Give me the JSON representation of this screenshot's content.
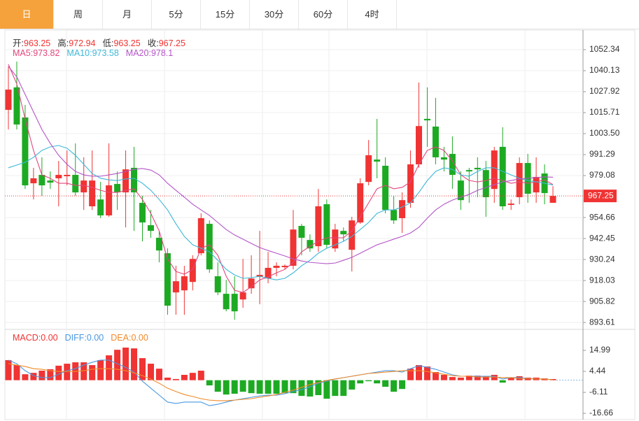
{
  "tabs": [
    "日",
    "周",
    "月",
    "5分",
    "15分",
    "30分",
    "60分",
    "4时"
  ],
  "active_tab": 0,
  "chart_data": {
    "type": "candlestick",
    "header_labels": [
      "开",
      "高",
      "低",
      "收"
    ],
    "up_color": "#f03333",
    "down_color": "#1daa23",
    "open": [
      1017.3,
      1030.4,
      1012.9,
      974.6,
      979.5,
      976.2,
      977.5,
      978.7,
      979.5,
      969.3,
      961.2,
      965.2,
      955.9,
      974.2,
      969.3,
      983.6,
      963.2,
      950.2,
      942.9,
      933.9,
      911.1,
      912.3,
      917.2,
      933.9,
      951.0,
      920.5,
      910.3,
      910.3,
      907.0,
      913.5,
      920.1,
      919.2,
      925.4,
      925.8,
      926.6,
      949.8,
      941.6,
      938.0,
      962.4,
      936.7,
      946.9,
      935.9,
      951.8,
      975.4,
      988.4,
      984.8,
      959.1,
      954.3,
      963.2,
      985.6,
      1012.1,
      1007.6,
      989.7,
      991.7,
      976.2,
      982.3,
      983.6,
      982.3,
      971.3,
      995.8,
      962.0,
      966.5,
      986.4,
      969.3,
      980.3,
      963.25
    ],
    "high": [
      1042.6,
      1045.4,
      1020.2,
      983.6,
      989.7,
      981.5,
      987.6,
      993.7,
      997.8,
      989.7,
      993.7,
      975.4,
      997.8,
      981.5,
      993.7,
      995.8,
      967.3,
      959.1,
      946.9,
      936.7,
      926.6,
      926.6,
      932.7,
      957.1,
      953.0,
      928.6,
      918.4,
      920.5,
      930.6,
      932.7,
      946.9,
      934.7,
      928.6,
      927.4,
      959.1,
      951.0,
      944.9,
      971.3,
      965.2,
      951.0,
      948.9,
      955.1,
      977.5,
      999.8,
      1012.1,
      989.7,
      967.3,
      969.3,
      993.7,
      1033.2,
      1030.4,
      1024.3,
      995.8,
      1001.9,
      981.5,
      983.6,
      989.7,
      987.6,
      995.8,
      1007.2,
      965.2,
      989.7,
      991.7,
      989.7,
      985.6,
      972.94
    ],
    "low": [
      1005.9,
      1005.9,
      971.3,
      965.2,
      967.3,
      971.3,
      961.2,
      973.4,
      967.3,
      959.1,
      959.1,
      954.3,
      955.1,
      959.1,
      948.9,
      946.9,
      940.8,
      942.9,
      928.6,
      898.1,
      898.1,
      898.1,
      912.3,
      932.7,
      922.5,
      909.5,
      900.1,
      895.2,
      902.2,
      910.3,
      904.2,
      916.4,
      920.5,
      924.5,
      924.5,
      932.7,
      934.7,
      934.7,
      936.7,
      934.7,
      940.8,
      923.3,
      951.0,
      973.4,
      977.5,
      957.1,
      951.0,
      945.7,
      960.4,
      983.6,
      995.8,
      985.6,
      981.5,
      971.3,
      959.1,
      963.2,
      966.5,
      955.1,
      963.2,
      959.1,
      959.1,
      962.4,
      963.2,
      963.2,
      962.4,
      963.25
    ],
    "close": [
      1029.1,
      1008.8,
      973.4,
      977.5,
      973.4,
      975.0,
      979.5,
      979.5,
      969.3,
      976.2,
      976.2,
      955.9,
      973.4,
      969.3,
      982.7,
      969.3,
      951.8,
      946.9,
      935.5,
      903.4,
      917.6,
      920.5,
      930.6,
      954.3,
      924.5,
      911.1,
      901.3,
      900.1,
      911.1,
      919.2,
      921.3,
      925.4,
      926.6,
      926.6,
      947.7,
      942.9,
      936.7,
      961.2,
      938.8,
      947.7,
      944.9,
      953.0,
      974.6,
      990.9,
      987.2,
      959.1,
      953.0,
      964.8,
      985.6,
      1007.9,
      1011.2,
      989.7,
      988.4,
      979.5,
      964.8,
      981.5,
      982.7,
      966.5,
      993.7,
      961.2,
      962.8,
      986.4,
      968.5,
      978.3,
      968.9,
      967.25
    ],
    "series": [
      {
        "name": "MA5",
        "color": "#e2467e",
        "values": [
          1043.8,
          1032.4,
          1012.0,
          993.7,
          979.5,
          977.5,
          974.6,
          974.6,
          973.4,
          973.4,
          972.2,
          970.5,
          969.3,
          969.3,
          970.5,
          971.4,
          965.2,
          957.1,
          946.9,
          930.6,
          923.3,
          921.7,
          924.5,
          936.8,
          938.8,
          932.7,
          920.5,
          912.3,
          911.1,
          914.4,
          918.4,
          920.1,
          922.5,
          924.5,
          928.6,
          934.7,
          938.0,
          940.8,
          942.9,
          942.9,
          942.9,
          946.9,
          955.1,
          963.2,
          971.4,
          973.4,
          971.4,
          972.2,
          975.4,
          985.6,
          993.7,
          995.8,
          993.7,
          987.6,
          979.5,
          976.2,
          975.4,
          976.2,
          977.5,
          976.2,
          974.6,
          975.4,
          974.6,
          975.4,
          976.6,
          973.82
        ]
      },
      {
        "name": "MA10",
        "color": "#3db8d8",
        "values": [
          983.6,
          985.2,
          986.8,
          989.7,
          993.7,
          995.8,
          996.6,
          995.0,
          990.9,
          985.6,
          980.3,
          977.5,
          976.6,
          976.2,
          977.1,
          977.5,
          974.6,
          970.5,
          965.2,
          959.1,
          951.0,
          943.7,
          938.8,
          936.8,
          934.7,
          929.8,
          924.5,
          921.3,
          919.3,
          919.7,
          920.5,
          919.3,
          918.4,
          919.3,
          922.5,
          926.6,
          929.8,
          933.9,
          936.8,
          938.8,
          940.8,
          943.7,
          947.7,
          951.8,
          957.1,
          959.1,
          959.1,
          960.8,
          963.2,
          969.3,
          976.2,
          981.5,
          983.6,
          982.7,
          979.5,
          978.7,
          981.5,
          983.6,
          983.6,
          981.5,
          979.5,
          977.5,
          976.2,
          975.4,
          974.6,
          973.58
        ]
      },
      {
        "name": "MA20",
        "color": "#b455c8",
        "values": [
          1042.6,
          1036.5,
          1026.3,
          1016.1,
          1005.9,
          997.8,
          990.9,
          985.6,
          981.5,
          979.5,
          978.7,
          978.7,
          979.5,
          980.3,
          981.5,
          982.7,
          983.2,
          982.3,
          979.5,
          974.6,
          970.5,
          966.5,
          962.4,
          959.1,
          955.9,
          951.8,
          947.7,
          944.5,
          942.1,
          939.6,
          937.2,
          935.5,
          933.9,
          932.3,
          930.6,
          929.4,
          928.6,
          928.2,
          927.8,
          928.2,
          929.8,
          931.5,
          933.9,
          936.4,
          938.8,
          940.4,
          942.1,
          943.7,
          945.7,
          949.0,
          954.3,
          959.1,
          962.4,
          964.8,
          966.5,
          968.1,
          970.5,
          972.2,
          973.8,
          975.4,
          976.2,
          977.1,
          977.5,
          977.9,
          978.3,
          978.1
        ]
      }
    ],
    "ylim": [
      890.0,
      1063.74
    ],
    "yticks": [
      1052.34,
      1040.13,
      1027.92,
      1015.71,
      {
        "value": 1003.5,
        "label": "1003.50"
      },
      991.29,
      979.08,
      954.66,
      942.45,
      930.24,
      918.03,
      905.82,
      893.61
    ],
    "grid": true,
    "macd": {
      "ylim": [
        -19.8,
        25.2
      ],
      "yticks": [
        14.99,
        4.44,
        -6.11,
        -16.66
      ],
      "legend": [
        {
          "label": "MACD",
          "value": "0.00",
          "color": "#f03333"
        },
        {
          "label": "DIFF",
          "value": "0.00",
          "color": "#4a98e0"
        },
        {
          "label": "DEA",
          "value": "0.00",
          "color": "#f08a28"
        }
      ],
      "hist": [
        10.1,
        7.6,
        3.0,
        3.7,
        4.8,
        5.5,
        7.3,
        8.3,
        9.0,
        9.0,
        7.6,
        10.1,
        12.5,
        15.3,
        16.4,
        16.0,
        11.1,
        8.3,
        5.8,
        1.3,
        0.6,
        2.7,
        3.7,
        4.8,
        -2.6,
        -5.8,
        -7.2,
        -6.8,
        -5.8,
        -6.5,
        -6.8,
        -6.8,
        -6.8,
        -6.5,
        -6.5,
        -7.9,
        -8.2,
        -7.5,
        -9.3,
        -7.9,
        -7.9,
        -4.7,
        -1.6,
        -0.5,
        -1.6,
        -3.3,
        -5.8,
        -4.4,
        5.8,
        7.6,
        6.9,
        4.1,
        2.7,
        1.6,
        1.3,
        2.3,
        2.3,
        2.0,
        2.7,
        -1.2,
        1.3,
        2.0,
        1.3,
        1.3,
        0.9,
        0.6
      ],
      "diff": [
        10.1,
        8.3,
        4.8,
        2.3,
        1.3,
        1.3,
        3.0,
        4.8,
        5.8,
        7.6,
        9.0,
        10.1,
        10.1,
        8.3,
        6.5,
        4.1,
        -0.5,
        -4.0,
        -7.5,
        -11.0,
        -11.7,
        -11.0,
        -11.0,
        -11.0,
        -12.8,
        -12.1,
        -11.0,
        -10.0,
        -9.3,
        -8.6,
        -7.9,
        -7.5,
        -7.5,
        -6.8,
        -5.7,
        -4.7,
        -3.3,
        -1.5,
        -0.5,
        0.6,
        1.3,
        2.0,
        2.7,
        3.4,
        4.1,
        4.8,
        4.8,
        4.1,
        5.8,
        7.3,
        6.5,
        5.5,
        4.1,
        2.7,
        2.0,
        2.0,
        2.0,
        2.0,
        2.0,
        0.6,
        1.3,
        1.3,
        0.9,
        0.6,
        0.6,
        0.2
      ],
      "dea": [
        8.3,
        7.6,
        6.9,
        5.8,
        5.5,
        4.8,
        4.4,
        4.4,
        4.4,
        4.8,
        5.5,
        5.8,
        5.8,
        5.5,
        4.8,
        3.7,
        2.3,
        0.6,
        -1.5,
        -4.0,
        -5.7,
        -7.2,
        -8.2,
        -9.3,
        -10.0,
        -10.3,
        -10.3,
        -10.0,
        -9.6,
        -9.3,
        -8.6,
        -7.9,
        -7.2,
        -6.1,
        -5.0,
        -3.6,
        -2.2,
        -1.2,
        -0.1,
        0.6,
        1.3,
        2.0,
        2.7,
        3.4,
        3.7,
        4.1,
        4.4,
        4.8,
        4.8,
        4.8,
        4.4,
        3.7,
        3.0,
        2.3,
        2.0,
        2.0,
        1.6,
        1.6,
        1.6,
        1.3,
        1.3,
        0.9,
        0.9,
        0.6,
        0.6,
        0.2
      ]
    }
  }
}
